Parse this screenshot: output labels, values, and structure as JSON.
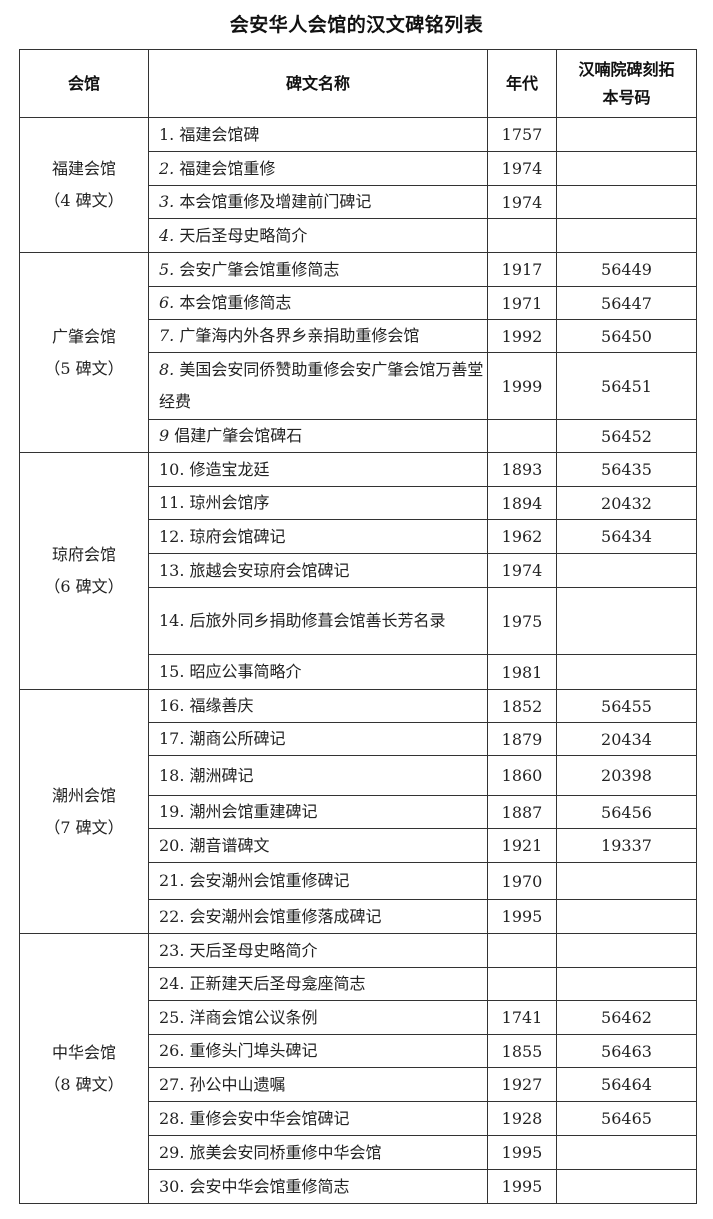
{
  "title": "会安华人会馆的汉文碑铭列表",
  "headers": {
    "hall": "会馆",
    "name": "碑文名称",
    "year": "年代",
    "code": "汉喃院碑刻拓本号码"
  },
  "groups": [
    {
      "hall": "福建会馆",
      "count": "（4 碑文）",
      "rows": [
        {
          "name": "1. 福建会馆碑",
          "year": "1757",
          "code": ""
        },
        {
          "name": "2. 福建会馆重修",
          "year": "1974",
          "code": ""
        },
        {
          "name": "3. 本会馆重修及增建前门碑记",
          "year": "1974",
          "code": ""
        },
        {
          "name": "4. 天后圣母史略简介",
          "year": "",
          "code": ""
        }
      ]
    },
    {
      "hall": "广肇会馆",
      "count": "（5 碑文）",
      "rows": [
        {
          "name": "5. 会安广肇会馆重修简志",
          "year": "1917",
          "code": "56449"
        },
        {
          "name": "6. 本会馆重修简志",
          "year": "1971",
          "code": "56447"
        },
        {
          "name": "7. 广肇海内外各界乡亲捐助重修会馆",
          "year": "1992",
          "code": "56450"
        },
        {
          "name": "8. 美国会安同侨赞助重修会安广肇会馆万善堂经费",
          "year": "1999",
          "code": "56451"
        },
        {
          "name": "9 倡建广肇会馆碑石",
          "year": "",
          "code": "56452"
        }
      ]
    },
    {
      "hall": "琼府会馆",
      "count": "（6 碑文）",
      "rows": [
        {
          "name": "10. 修造宝龙廷",
          "year": "1893",
          "code": "56435"
        },
        {
          "name": "11. 琼州会馆序",
          "year": "1894",
          "code": "20432"
        },
        {
          "name": "12. 琼府会馆碑记",
          "year": "1962",
          "code": "56434"
        },
        {
          "name": "13. 旅越会安琼府会馆碑记",
          "year": "1974",
          "code": ""
        },
        {
          "name": "14. 后旅外同乡捐助修葺会馆善长芳名录",
          "year": "1975",
          "code": ""
        },
        {
          "name": "15. 昭应公事简略介",
          "year": "1981",
          "code": ""
        }
      ]
    },
    {
      "hall": "潮州会馆",
      "count": "（7 碑文）",
      "rows": [
        {
          "name": "16. 福缘善庆",
          "year": "1852",
          "code": "56455"
        },
        {
          "name": "17. 潮商公所碑记",
          "year": "1879",
          "code": "20434"
        },
        {
          "name": "18. 潮洲碑记",
          "year": "1860",
          "code": "20398"
        },
        {
          "name": "19. 潮州会馆重建碑记",
          "year": "1887",
          "code": "56456"
        },
        {
          "name": "20.  潮音谱碑文",
          "year": "1921",
          "code": "19337"
        },
        {
          "name": "21. 会安潮州会馆重修碑记",
          "year": "1970",
          "code": ""
        },
        {
          "name": "22. 会安潮州会馆重修落成碑记",
          "year": "1995",
          "code": ""
        }
      ]
    },
    {
      "hall": "中华会馆",
      "count": "（8 碑文）",
      "rows": [
        {
          "name": "23. 天后圣母史略简介",
          "year": "",
          "code": ""
        },
        {
          "name": "24. 正新建天后圣母龛座简志",
          "year": "",
          "code": ""
        },
        {
          "name": "25. 洋商会馆公议条例",
          "year": "1741",
          "code": "56462"
        },
        {
          "name": "26. 重修头门埠头碑记",
          "year": "1855",
          "code": "56463"
        },
        {
          "name": "27. 孙公中山遗嘱",
          "year": "1927",
          "code": "56464"
        },
        {
          "name": "28. 重修会安中华会馆碑记",
          "year": "1928",
          "code": "56465"
        },
        {
          "name": "29. 旅美会安同桥重修中华会馆",
          "year": "1995",
          "code": ""
        },
        {
          "name": "30.  会安中华会馆重修简志",
          "year": "1995",
          "code": ""
        }
      ]
    }
  ]
}
